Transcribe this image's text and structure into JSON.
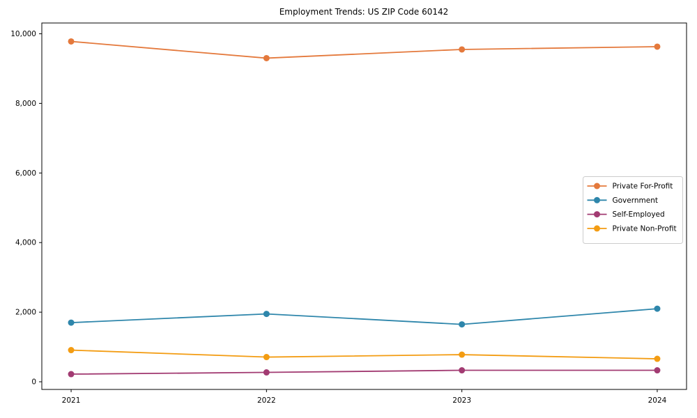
{
  "chart_data": {
    "type": "line",
    "title": "Employment Trends: US ZIP Code 60142",
    "xlabel": "",
    "ylabel": "",
    "x": [
      2021,
      2022,
      2023,
      2024
    ],
    "x_tick_labels": [
      "2021",
      "2022",
      "2023",
      "2024"
    ],
    "y_ticks": [
      0,
      2000,
      4000,
      6000,
      8000,
      10000
    ],
    "y_tick_labels": [
      "0",
      "2,000",
      "4,000",
      "6,000",
      "8,000",
      "10,000"
    ],
    "xlim": [
      2020.85,
      2024.15
    ],
    "ylim": [
      -220,
      10310
    ],
    "grid": false,
    "legend_position": "center right",
    "frame_color": "#000000",
    "background_color": "#ffffff",
    "series": [
      {
        "name": "Private For-Profit",
        "color": "#E4793C",
        "values": [
          9780,
          9300,
          9550,
          9630
        ]
      },
      {
        "name": "Government",
        "color": "#2E86AB",
        "values": [
          1700,
          1950,
          1650,
          2100
        ]
      },
      {
        "name": "Self-Employed",
        "color": "#A23B72",
        "values": [
          220,
          270,
          330,
          330
        ]
      },
      {
        "name": "Private Non-Profit",
        "color": "#F39C12",
        "values": [
          910,
          710,
          780,
          660
        ]
      }
    ]
  }
}
